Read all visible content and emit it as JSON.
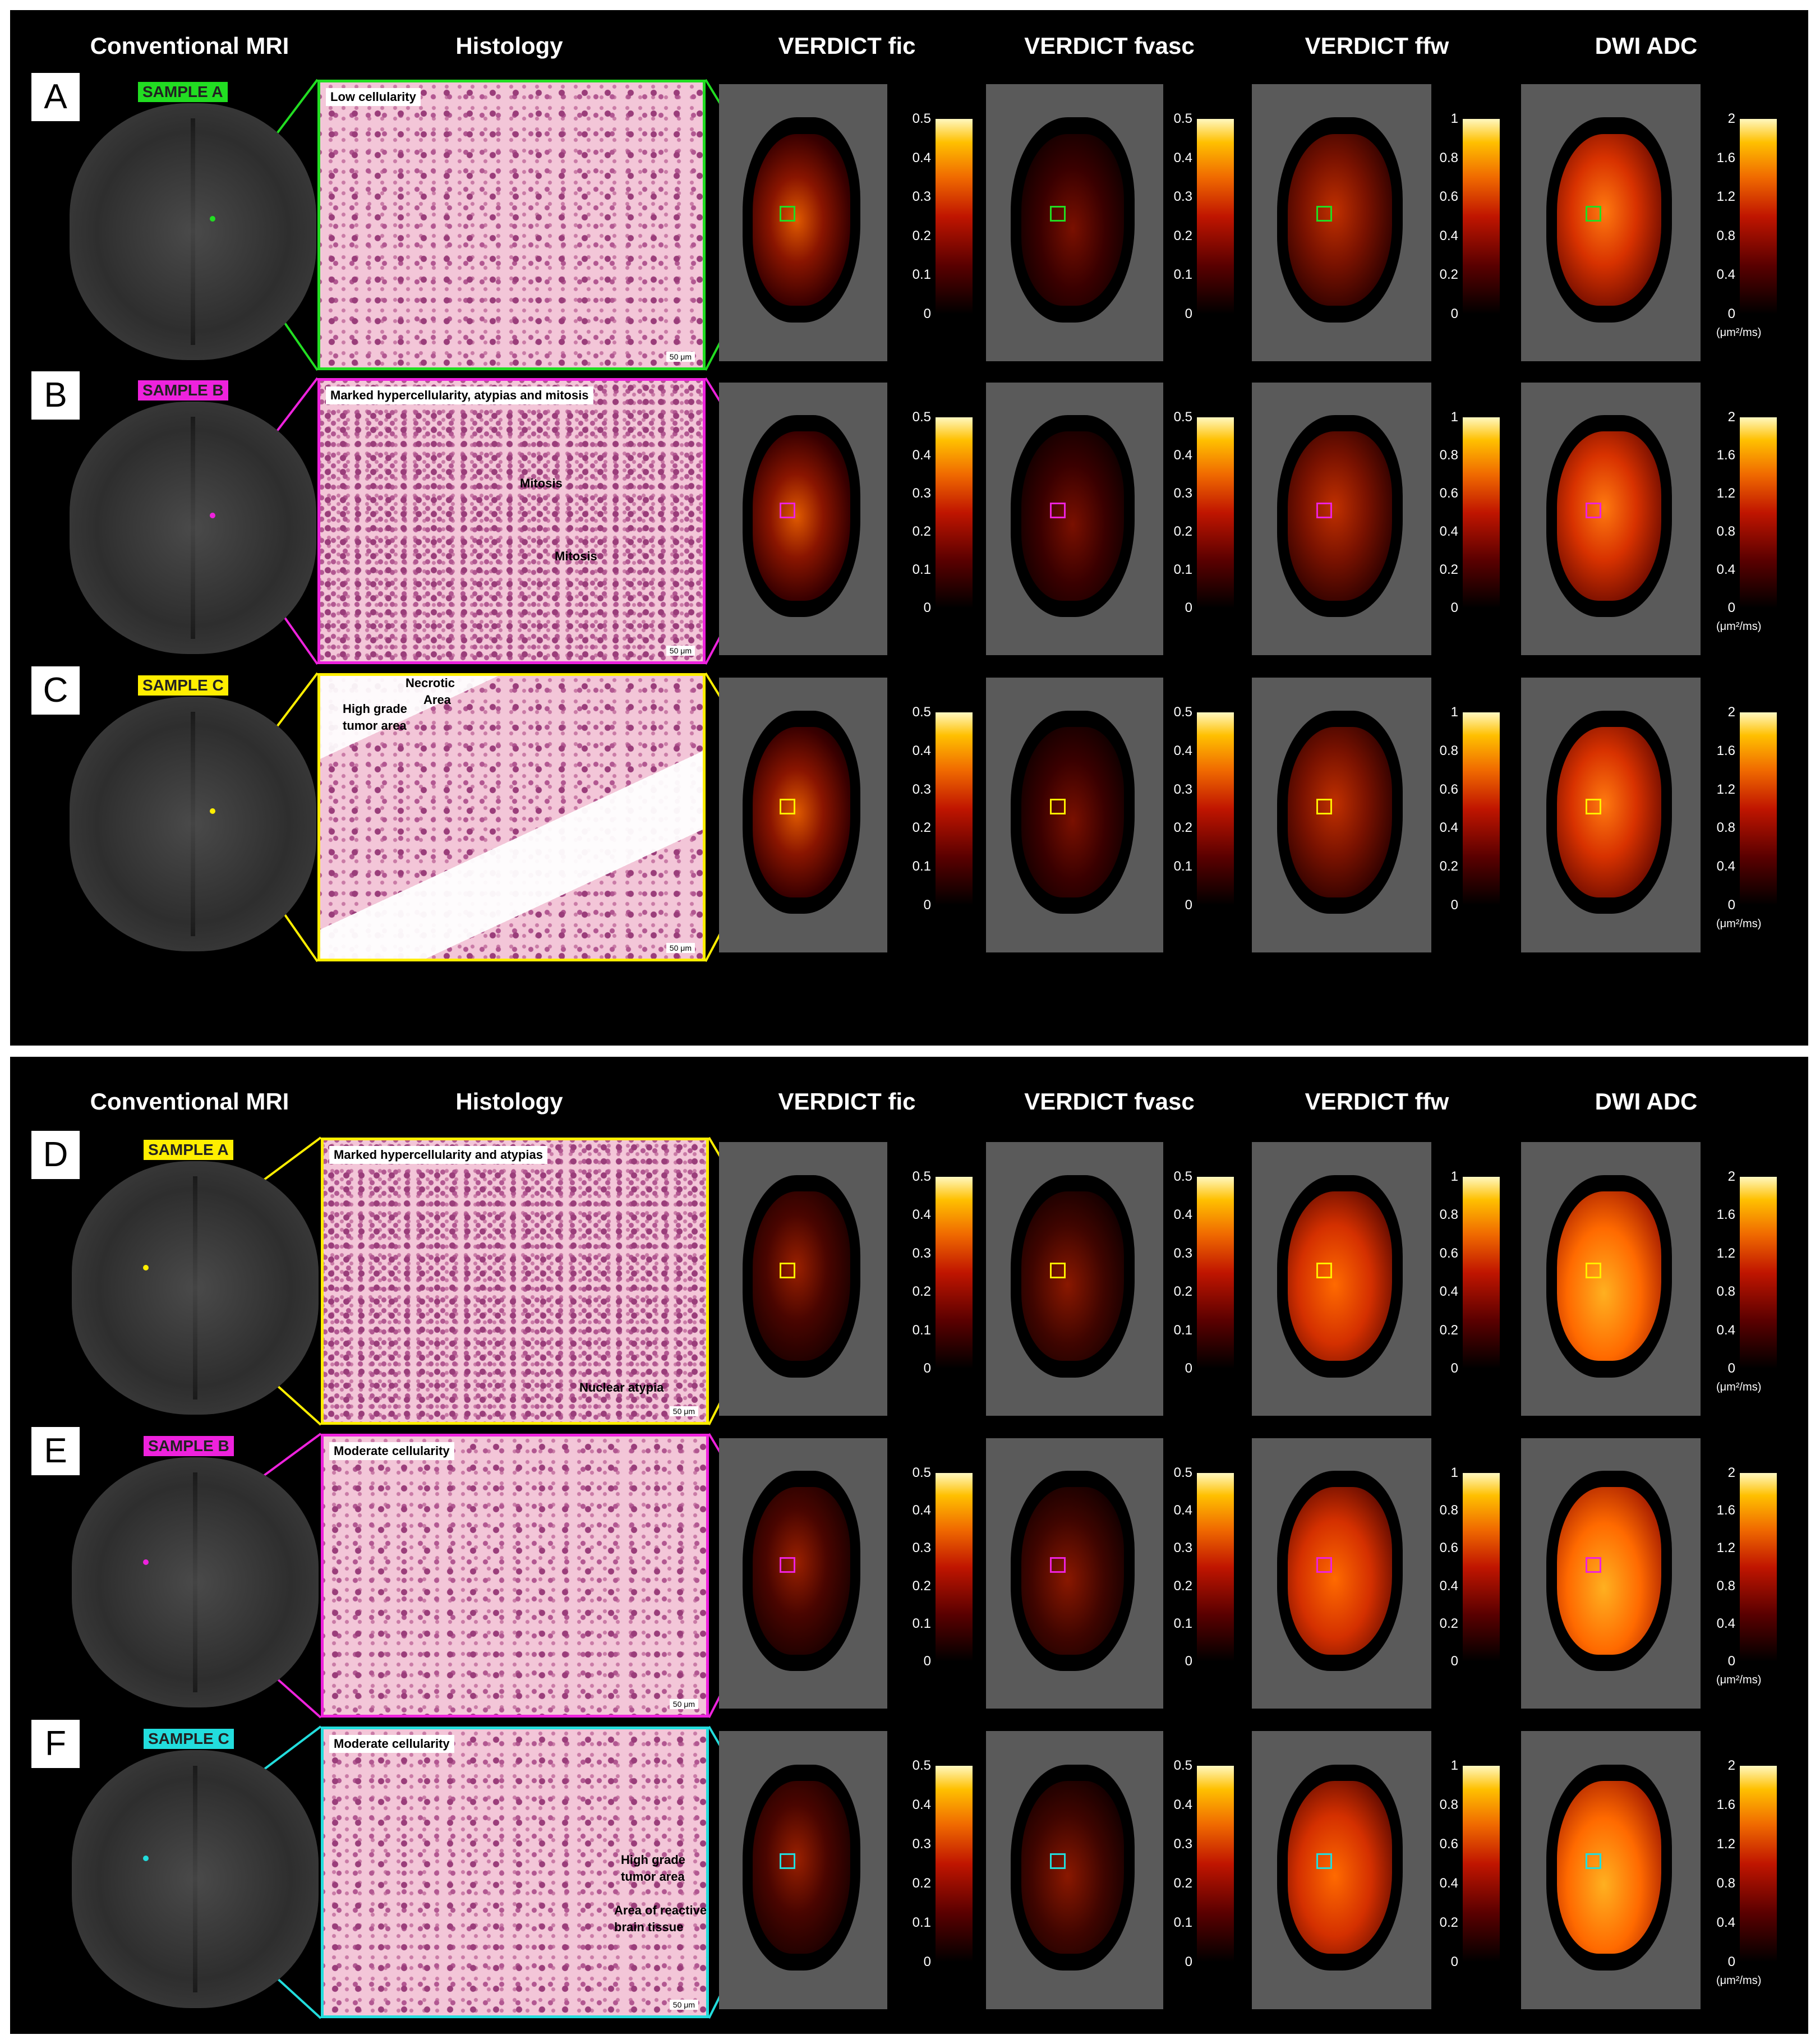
{
  "column_headers": [
    "Conventional MRI",
    "Histology",
    "VERDICT fic",
    "VERDICT fvasc",
    "VERDICT ffw",
    "DWI ADC"
  ],
  "colorbar_ticks": {
    "fic": [
      "0.5",
      "0.4",
      "0.3",
      "0.2",
      "0.1",
      "0"
    ],
    "fvasc": [
      "0.5",
      "0.4",
      "0.3",
      "0.2",
      "0.1",
      "0"
    ],
    "ffw": [
      "1",
      "0.8",
      "0.6",
      "0.4",
      "0.2",
      "0"
    ],
    "adc": [
      "2",
      "1.6",
      "1.2",
      "0.8",
      "0.4",
      "0"
    ]
  },
  "adc_unit": "(μm²/ms)",
  "scale_bar": "50 μm",
  "colors": {
    "green": "#22dd22",
    "magenta": "#ee22dd",
    "yellow": "#ffee00",
    "cyan": "#22dddd"
  },
  "rows": [
    {
      "letter": "A",
      "sample": "SAMPLE A",
      "color": "#22dd22",
      "caption": "Low cellularity",
      "annotations": []
    },
    {
      "letter": "B",
      "sample": "SAMPLE B",
      "color": "#ee22dd",
      "caption": "Marked hypercellularity, atypias and mitosis",
      "annotations": [
        "Mitosis",
        "Mitosis"
      ]
    },
    {
      "letter": "C",
      "sample": "SAMPLE C",
      "color": "#ffee00",
      "caption": "",
      "annotations": [
        "Necrotic",
        "Area",
        "High grade",
        "tumor area"
      ]
    },
    {
      "letter": "D",
      "sample": "SAMPLE A",
      "color": "#ffee00",
      "caption": "Marked hypercellularity and atypias",
      "annotations": [
        "Nuclear atypia"
      ]
    },
    {
      "letter": "E",
      "sample": "SAMPLE B",
      "color": "#ee22dd",
      "caption": "Moderate cellularity",
      "annotations": []
    },
    {
      "letter": "F",
      "sample": "SAMPLE C",
      "color": "#22dddd",
      "caption": "Moderate cellularity",
      "annotations": [
        "High grade",
        "tumor area",
        "Area of reactive",
        "brain tissue"
      ]
    }
  ]
}
